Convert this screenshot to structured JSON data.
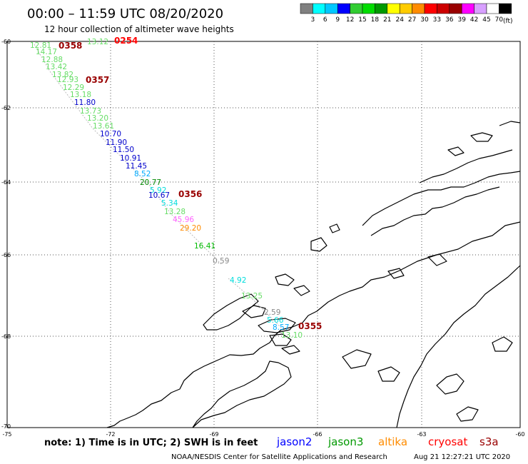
{
  "header": {
    "title": "00:00 – 11:59 UTC 08/20/2020",
    "subtitle": "12 hour collection of altimeter wave heights",
    "units": "(ft)"
  },
  "colorbar": {
    "colors": [
      "#808080",
      "#00ffff",
      "#00c8ff",
      "#0000ff",
      "#32cd32",
      "#00dd00",
      "#009900",
      "#ffff00",
      "#ffcc00",
      "#ff8c00",
      "#ff0000",
      "#cc0000",
      "#990000",
      "#ff00ff",
      "#d8a0ff",
      "#ffffff",
      "#000000"
    ],
    "labels": [
      "3",
      "6",
      "9",
      "12",
      "15",
      "18",
      "21",
      "24",
      "27",
      "30",
      "33",
      "36",
      "39",
      "42",
      "45",
      "70"
    ]
  },
  "axes": {
    "lat_labels": [
      "-60",
      "-62",
      "-64",
      "-66",
      "-68",
      "-70"
    ],
    "lon_labels": [
      "-75",
      "-72",
      "-69",
      "-66",
      "-63",
      "-60"
    ]
  },
  "times": [
    {
      "text": "0358",
      "color": "#990000"
    },
    {
      "text": "0254",
      "color": "#ff0000"
    },
    {
      "text": "0357",
      "color": "#990000"
    },
    {
      "text": "0356",
      "color": "#990000"
    },
    {
      "text": "0355",
      "color": "#990000"
    }
  ],
  "wave_heights": [
    {
      "text": "13.12",
      "color": "#66dd66"
    },
    {
      "text": "12.81",
      "color": "#66dd66"
    },
    {
      "text": "14.17",
      "color": "#66dd66"
    },
    {
      "text": "12.88",
      "color": "#66dd66"
    },
    {
      "text": "13.42",
      "color": "#66dd66"
    },
    {
      "text": "13.82",
      "color": "#66dd66"
    },
    {
      "text": "12.93",
      "color": "#66dd66"
    },
    {
      "text": "12.29",
      "color": "#66dd66"
    },
    {
      "text": "13.18",
      "color": "#66dd66"
    },
    {
      "text": "11.80",
      "color": "#0000cc"
    },
    {
      "text": "13.73",
      "color": "#66dd66"
    },
    {
      "text": "13.20",
      "color": "#66dd66"
    },
    {
      "text": "13.61",
      "color": "#66dd66"
    },
    {
      "text": "10.70",
      "color": "#0000cc"
    },
    {
      "text": "11.90",
      "color": "#0000cc"
    },
    {
      "text": "11.50",
      "color": "#0000cc"
    },
    {
      "text": "10.91",
      "color": "#0000cc"
    },
    {
      "text": "11.45",
      "color": "#0000cc"
    },
    {
      "text": "8.52",
      "color": "#00aaff"
    },
    {
      "text": "20.77",
      "color": "#008800"
    },
    {
      "text": "5.92",
      "color": "#00dddd"
    },
    {
      "text": "10.67",
      "color": "#0000cc"
    },
    {
      "text": "5.34",
      "color": "#00dddd"
    },
    {
      "text": "13.28",
      "color": "#66dd66"
    },
    {
      "text": "45.96",
      "color": "#ff66ff"
    },
    {
      "text": "29.20",
      "color": "#ff8c00"
    },
    {
      "text": "16.41",
      "color": "#00bb00"
    },
    {
      "text": "0.59",
      "color": "#888888"
    },
    {
      "text": "4.92",
      "color": "#00dddd"
    },
    {
      "text": "13.25",
      "color": "#66dd66"
    },
    {
      "text": "2.59",
      "color": "#888888"
    },
    {
      "text": "5.66",
      "color": "#00dddd"
    },
    {
      "text": "8.57",
      "color": "#00aaff"
    },
    {
      "text": "13.10",
      "color": "#66dd66"
    }
  ],
  "footer": {
    "note": "note: 1) Time is in UTC; 2) SWH is in feet",
    "credit": "NOAA/NESDIS Center for Satellite Applications and Research",
    "timestamp": "Aug 21 12:27:21 UTC 2020"
  },
  "legend": [
    {
      "text": "jason2",
      "color": "#0000ff"
    },
    {
      "text": "jason3",
      "color": "#009900"
    },
    {
      "text": "altika",
      "color": "#ff8c00"
    },
    {
      "text": "cryosat",
      "color": "#ff0000"
    },
    {
      "text": "s3a",
      "color": "#990000"
    }
  ]
}
